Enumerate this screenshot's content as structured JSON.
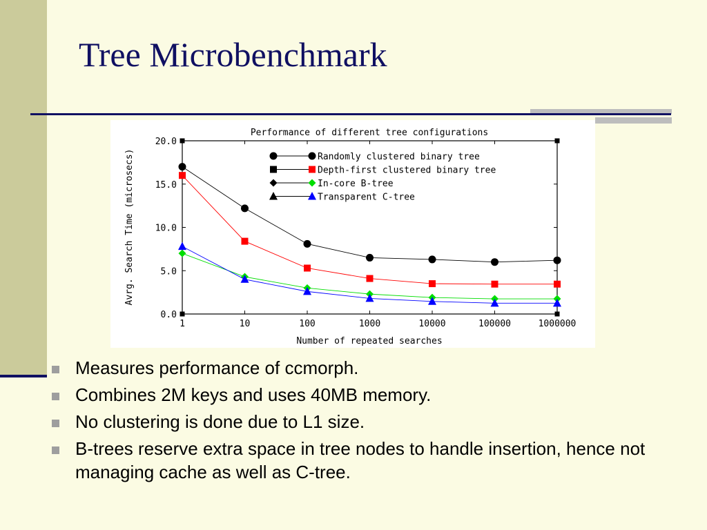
{
  "slide": {
    "title": "Tree Microbenchmark",
    "bullets": [
      "Measures performance of ccmorph.",
      "Combines 2M keys and uses 40MB memory.",
      "No clustering is done due to L1 size.",
      "B-trees reserve extra space in tree nodes to handle insertion, hence not managing cache as well as C-tree."
    ],
    "bullet_icon": "square-bullet-icon"
  },
  "colors": {
    "background": "#FBFBE3",
    "accent_band": "#CBCB9B",
    "rule": "#101062",
    "title_text": "#101062",
    "bullet_square": "#9E9E9E"
  },
  "chart_data": {
    "type": "line",
    "title": "Performance of different tree configurations",
    "xlabel": "Number of repeated searches",
    "ylabel": "Avrg. Search Time (microsecs)",
    "x_scale": "log",
    "x": [
      1,
      10,
      100,
      1000,
      10000,
      100000,
      1000000
    ],
    "x_tick_labels": [
      "1",
      "10",
      "100",
      "1000",
      "10000",
      "100000",
      "1000000"
    ],
    "ylim": [
      0,
      20
    ],
    "y_ticks": [
      0,
      5,
      10,
      15,
      20
    ],
    "y_tick_labels": [
      "0.0",
      "5.0",
      "10.0",
      "15.0",
      "20.0"
    ],
    "grid": false,
    "legend_position": "top-right",
    "series": [
      {
        "name": "Randomly clustered binary tree",
        "marker": "circle",
        "color": "#000000",
        "values": [
          17.0,
          12.2,
          8.1,
          6.5,
          6.3,
          6.0,
          6.2
        ]
      },
      {
        "name": "Depth-first clustered binary tree",
        "marker": "square",
        "color": "#FF0000",
        "values": [
          16.0,
          8.4,
          5.3,
          4.1,
          3.5,
          3.45,
          3.45
        ]
      },
      {
        "name": "In-core B-tree",
        "marker": "diamond",
        "color": "#00DD00",
        "values": [
          7.0,
          4.3,
          3.0,
          2.3,
          1.9,
          1.75,
          1.75
        ]
      },
      {
        "name": "Transparent C-tree",
        "marker": "triangle",
        "color": "#0000FF",
        "values": [
          7.8,
          4.0,
          2.6,
          1.8,
          1.45,
          1.25,
          1.25
        ]
      }
    ]
  }
}
